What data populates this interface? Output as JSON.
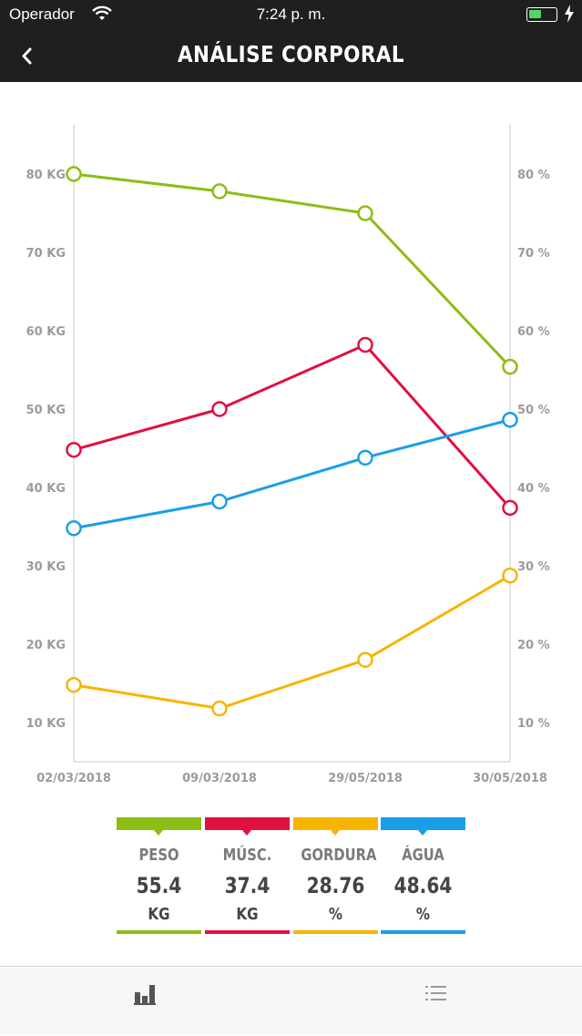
{
  "status_bar": {
    "carrier": "Operador",
    "time": "7:24 p. m."
  },
  "nav": {
    "title": "ANÁLISE CORPORAL",
    "back_icon": "chevron-left-icon"
  },
  "chart_data": {
    "type": "line",
    "x": [
      "02/03/2018",
      "09/03/2018",
      "29/05/2018",
      "30/05/2018"
    ],
    "y_left_ticks": [
      "10 KG",
      "20 KG",
      "30 KG",
      "40 KG",
      "50 KG",
      "60 KG",
      "70 KG",
      "80 KG"
    ],
    "y_right_ticks": [
      "10 %",
      "20 %",
      "30 %",
      "40 %",
      "50 %",
      "60 %",
      "70 %",
      "80 %"
    ],
    "ylim": [
      5,
      85
    ],
    "series": [
      {
        "name": "PESO",
        "color": "#8cbd15",
        "values": [
          80,
          77.8,
          75,
          55.4
        ]
      },
      {
        "name": "MÚSC.",
        "color": "#e0103f",
        "values": [
          44.8,
          50,
          58.2,
          37.4
        ]
      },
      {
        "name": "ÁGUA",
        "color": "#1a9ee8",
        "values": [
          34.8,
          38.2,
          43.8,
          48.64
        ]
      },
      {
        "name": "GORDURA",
        "color": "#f7b500",
        "values": [
          14.8,
          11.8,
          18,
          28.76
        ]
      }
    ]
  },
  "legend": [
    {
      "name": "PESO",
      "value": "55.4",
      "unit": "KG",
      "color": "#8cbd15"
    },
    {
      "name": "MÚSC.",
      "value": "37.4",
      "unit": "KG",
      "color": "#e0103f"
    },
    {
      "name": "GORDURA",
      "value": "28.76",
      "unit": "%",
      "color": "#f7b500"
    },
    {
      "name": "ÁGUA",
      "value": "48.64",
      "unit": "%",
      "color": "#1a9ee8"
    }
  ],
  "tabbar": {
    "tabs": [
      {
        "icon": "bar-chart-icon"
      },
      {
        "icon": "list-icon"
      }
    ]
  }
}
